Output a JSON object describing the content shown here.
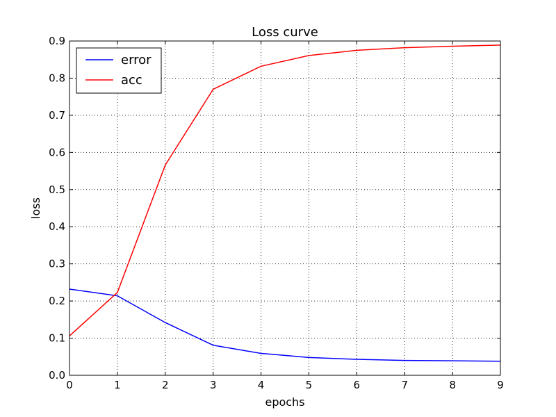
{
  "chart_data": {
    "type": "line",
    "title": "Loss curve",
    "xlabel": "epochs",
    "ylabel": "loss",
    "x": [
      0,
      1,
      2,
      3,
      4,
      5,
      6,
      7,
      8,
      9
    ],
    "xlim": [
      0,
      9
    ],
    "ylim": [
      0.0,
      0.9
    ],
    "xticks": [
      "0",
      "1",
      "2",
      "3",
      "4",
      "5",
      "6",
      "7",
      "8",
      "9"
    ],
    "yticks": [
      "0.0",
      "0.1",
      "0.2",
      "0.3",
      "0.4",
      "0.5",
      "0.6",
      "0.7",
      "0.8",
      "0.9"
    ],
    "grid": true,
    "legend_position": "top-left",
    "series": [
      {
        "name": "error",
        "color": "#0000ff",
        "values": [
          0.232,
          0.214,
          0.142,
          0.081,
          0.059,
          0.048,
          0.043,
          0.04,
          0.039,
          0.038
        ]
      },
      {
        "name": "acc",
        "color": "#ff0000",
        "values": [
          0.106,
          0.223,
          0.566,
          0.77,
          0.832,
          0.861,
          0.875,
          0.882,
          0.886,
          0.889
        ]
      }
    ]
  }
}
